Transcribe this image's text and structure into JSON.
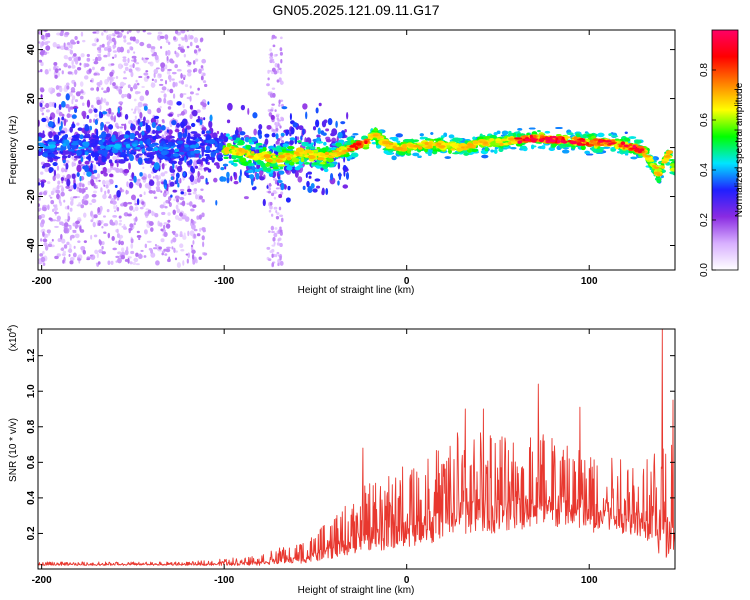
{
  "title": "GN05.2025.121.09.11.G17",
  "chart_data": [
    {
      "type": "heatmap",
      "xlabel": "Height of straight line (km)",
      "ylabel": "Frequency (Hz)",
      "xlim": [
        -202,
        147
      ],
      "ylim": [
        -50,
        48
      ],
      "xticks": [
        -200,
        -100,
        0,
        100
      ],
      "yticks": [
        -40,
        -20,
        0,
        20,
        40
      ],
      "colorbar": {
        "label": "Normalized spectral amplitude",
        "range": [
          0,
          0.96
        ],
        "ticks": [
          0.0,
          0.2,
          0.4,
          0.6,
          0.8
        ],
        "colors": [
          "#ffffff",
          "#d8b0ff",
          "#8a2be2",
          "#2020ff",
          "#00e5ff",
          "#00ff00",
          "#ffff00",
          "#ff8000",
          "#ff0000",
          "#ff0066"
        ]
      },
      "ridge_frequency_hz": {
        "x": [
          -202,
          -190,
          -170,
          -150,
          -130,
          -110,
          -95,
          -85,
          -78,
          -70,
          -60,
          -50,
          -45,
          -38,
          -30,
          -22,
          -18,
          -14,
          -10,
          -5,
          0,
          10,
          20,
          30,
          40,
          50,
          60,
          70,
          80,
          90,
          100,
          110,
          120,
          125,
          130,
          135,
          138,
          141,
          144,
          147
        ],
        "y": [
          0,
          1,
          0,
          1,
          -1,
          0,
          -1,
          -3,
          -4,
          -5,
          -2,
          -3,
          -4,
          -2,
          0,
          2,
          6,
          3,
          1,
          0,
          0,
          1,
          1,
          0,
          2,
          2,
          3,
          4,
          3,
          3,
          2,
          2,
          1,
          0,
          -2,
          -7,
          -11,
          -6,
          -2,
          -10
        ]
      },
      "scatter_region_x": [
        -202,
        -110
      ],
      "scatter_region_freq": [
        -48,
        48
      ]
    },
    {
      "type": "line",
      "xlabel": "Height of straight line (km)",
      "ylabel": "SNR (10 * v/v)",
      "y_multiplier": "(x10",
      "y_exponent": "4",
      "xlim": [
        -202,
        147
      ],
      "ylim": [
        0,
        1.35
      ],
      "xticks": [
        -200,
        -100,
        0,
        100
      ],
      "yticks": [
        0.2,
        0.4,
        0.6,
        0.8,
        1.0,
        1.2
      ],
      "line_color": "#e8382f",
      "envelope": {
        "x": [
          -202,
          -150,
          -120,
          -100,
          -90,
          -80,
          -70,
          -60,
          -50,
          -40,
          -30,
          -20,
          -10,
          0,
          10,
          20,
          30,
          40,
          50,
          60,
          70,
          80,
          90,
          100,
          110,
          120,
          130,
          140,
          147
        ],
        "y_low": [
          0.02,
          0.02,
          0.02,
          0.02,
          0.02,
          0.02,
          0.03,
          0.03,
          0.04,
          0.06,
          0.08,
          0.1,
          0.1,
          0.12,
          0.14,
          0.16,
          0.18,
          0.2,
          0.2,
          0.22,
          0.22,
          0.22,
          0.22,
          0.2,
          0.2,
          0.2,
          0.18,
          0.05,
          0.1
        ],
        "y_high": [
          0.04,
          0.04,
          0.04,
          0.06,
          0.07,
          0.09,
          0.12,
          0.14,
          0.2,
          0.3,
          0.4,
          0.5,
          0.55,
          0.6,
          0.65,
          0.7,
          0.8,
          0.8,
          0.8,
          0.78,
          0.8,
          0.78,
          0.75,
          0.7,
          0.7,
          0.65,
          0.62,
          0.7,
          0.75
        ]
      },
      "spikes": [
        {
          "x": -24,
          "y": 0.68
        },
        {
          "x": 32,
          "y": 0.9
        },
        {
          "x": 42,
          "y": 0.9
        },
        {
          "x": 72,
          "y": 1.04
        },
        {
          "x": 95,
          "y": 0.91
        },
        {
          "x": 140,
          "y": 1.35
        },
        {
          "x": 146,
          "y": 0.95
        }
      ]
    }
  ]
}
